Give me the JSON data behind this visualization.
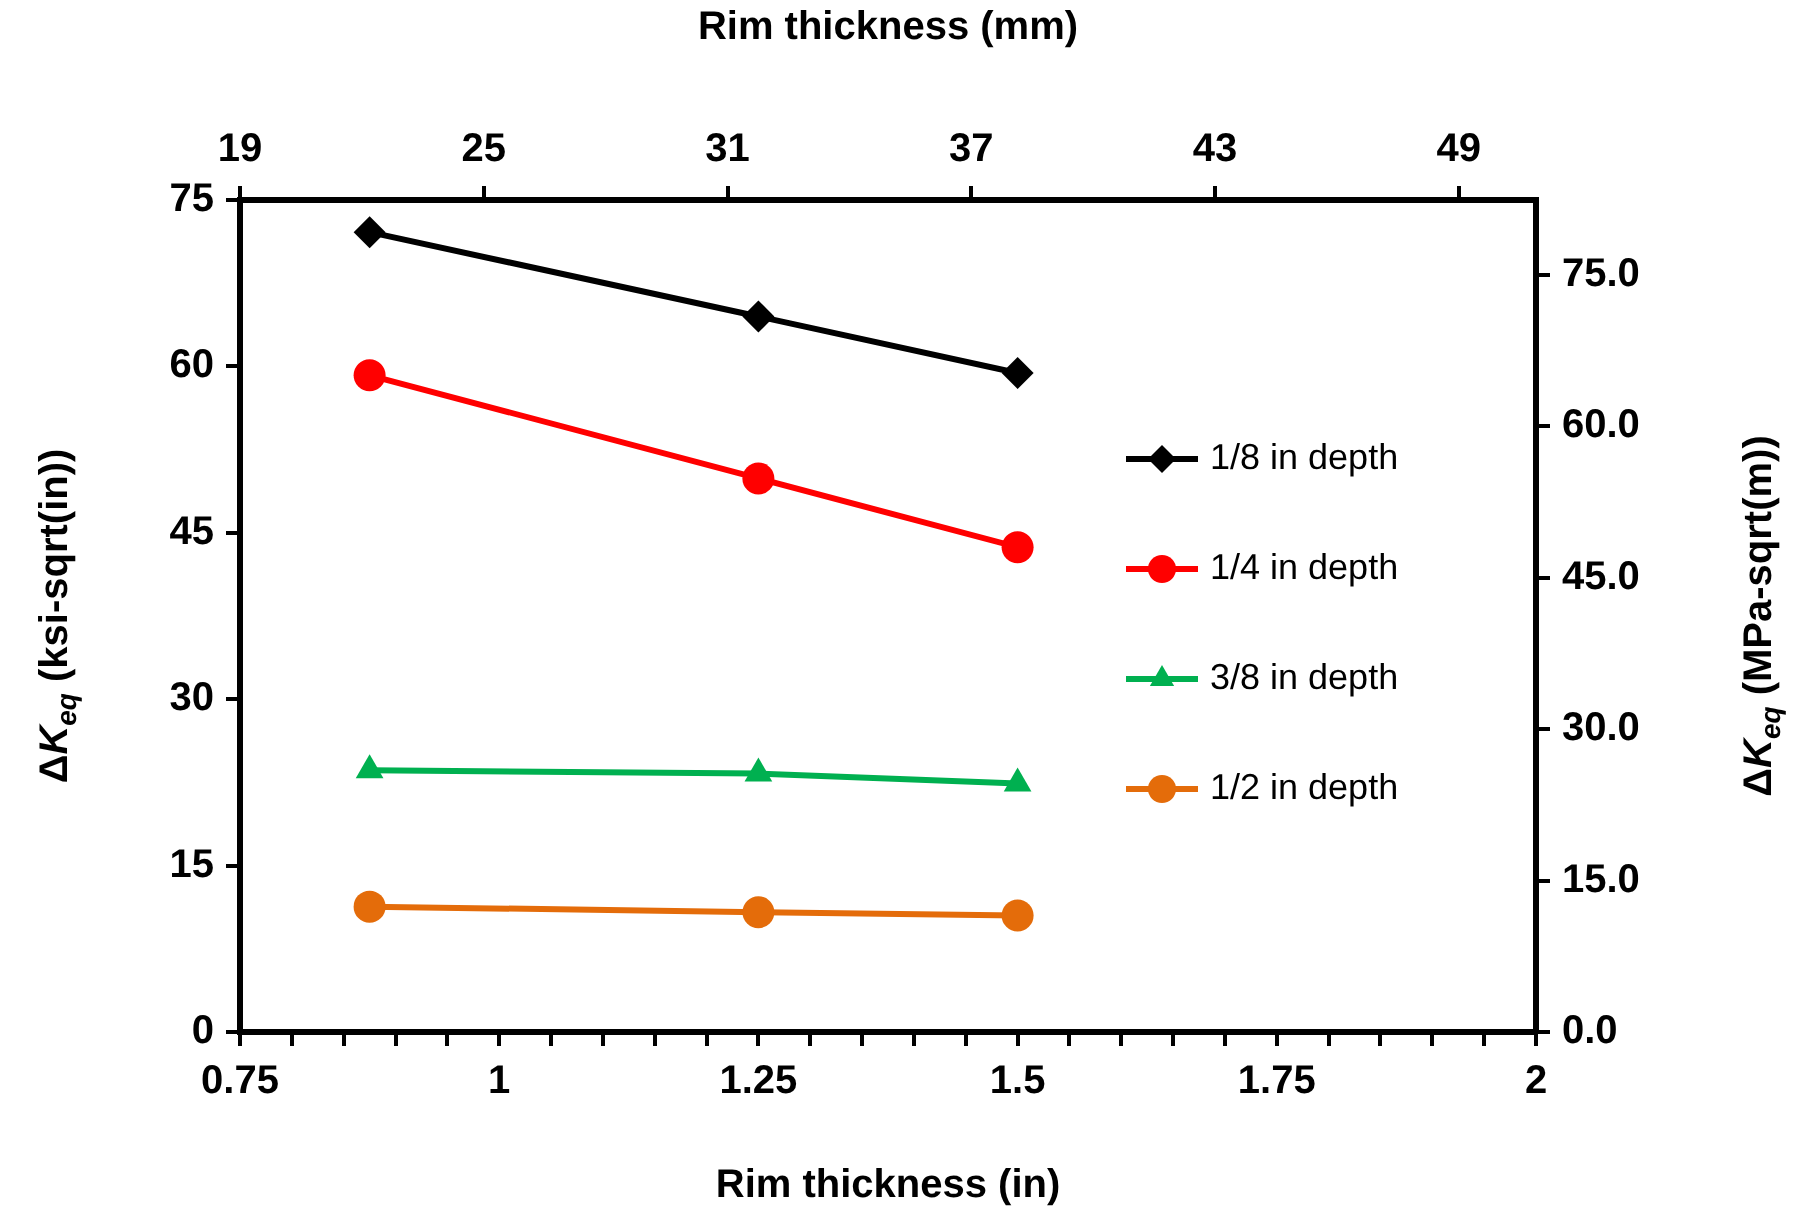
{
  "chart_data": {
    "type": "line",
    "xlabel": "Rim thickness (in)",
    "x2label": "Rim thickness (mm)",
    "ylabel": "ΔK$_{eq}$ (ksi-sqrt(in))",
    "y2label": "ΔK$_{eq}$ (MPa-sqrt(m))",
    "x": [
      0.875,
      1.25,
      1.5
    ],
    "series": [
      {
        "name": "1/8 in depth",
        "color": "#000000",
        "marker": "diamond",
        "values": [
          72.1,
          64.5,
          59.4
        ]
      },
      {
        "name": "1/4 in depth",
        "color": "#ff0000",
        "marker": "circle",
        "values": [
          59.2,
          49.9,
          43.7
        ]
      },
      {
        "name": "3/8 in depth",
        "color": "#00b050",
        "marker": "triangle",
        "values": [
          23.6,
          23.3,
          22.4
        ]
      },
      {
        "name": "1/2 in depth",
        "color": "#e46c0a",
        "marker": "circle",
        "values": [
          11.3,
          10.8,
          10.5
        ]
      }
    ],
    "xlim": [
      0.75,
      2
    ],
    "xticks": [
      {
        "value": 0.75,
        "label": "0.75"
      },
      {
        "value": 0.8,
        "label": null
      },
      {
        "value": 0.85,
        "label": null
      },
      {
        "value": 0.9,
        "label": null
      },
      {
        "value": 0.95,
        "label": null
      },
      1,
      {
        "value": 1.05,
        "label": null
      },
      {
        "value": 1.1,
        "label": null
      },
      {
        "value": 1.15,
        "label": null
      },
      {
        "value": 1.2,
        "label": null
      },
      1.25,
      {
        "value": 1.3,
        "label": null
      },
      {
        "value": 1.35,
        "label": null
      },
      {
        "value": 1.4,
        "label": null
      },
      {
        "value": 1.45,
        "label": null
      },
      1.5,
      {
        "value": 1.55,
        "label": null
      },
      {
        "value": 1.6,
        "label": null
      },
      {
        "value": 1.65,
        "label": null
      },
      {
        "value": 1.7,
        "label": null
      },
      1.75,
      {
        "value": 1.8,
        "label": null
      },
      {
        "value": 1.85,
        "label": null
      },
      {
        "value": 1.9,
        "label": null
      },
      {
        "value": 1.95,
        "label": null
      },
      2
    ],
    "x2lim": [
      19,
      50.9
    ],
    "x2ticks": [
      19,
      25,
      31,
      37,
      43,
      49
    ],
    "ylim": [
      0,
      75
    ],
    "yticks": [
      0,
      15,
      30,
      45,
      60,
      75
    ],
    "y2lim": [
      0,
      82.4
    ],
    "y2ticks": [
      {
        "value": 0,
        "label": "0.0"
      },
      {
        "value": 15,
        "label": "15.0"
      },
      {
        "value": 30,
        "label": "30.0"
      },
      {
        "value": 45,
        "label": "45.0"
      },
      {
        "value": 60,
        "label": "60.0"
      },
      {
        "value": 75,
        "label": "75.0"
      }
    ],
    "grid": false,
    "legend": "right",
    "line_style": "solid"
  }
}
